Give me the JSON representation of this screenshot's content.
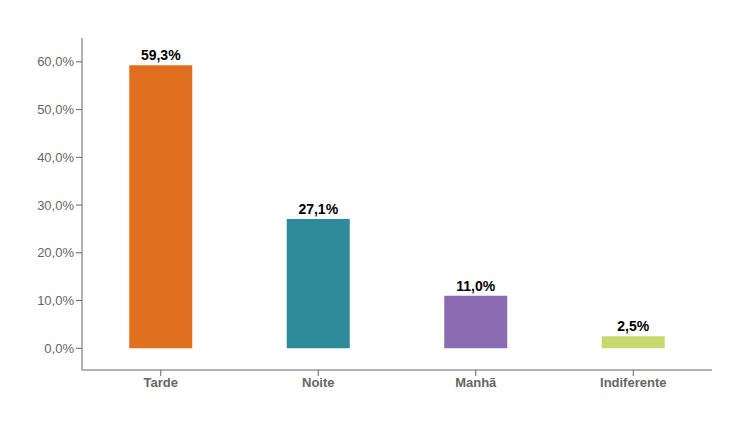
{
  "chart_data": {
    "type": "bar",
    "categories": [
      "Tarde",
      "Noite",
      "Manhã",
      "Indiferente"
    ],
    "values": [
      59.3,
      27.1,
      11.0,
      2.5
    ],
    "value_labels": [
      "59,3%",
      "27,1%",
      "11,0%",
      "2,5%"
    ],
    "data_labels": true,
    "colors": [
      "#E07020",
      "#2E8B9A",
      "#8B6BB1",
      "#C8D96F"
    ],
    "ylim": [
      -4.55,
      65
    ],
    "yticks": [
      {
        "value": 0,
        "label": "0,0%"
      },
      {
        "value": 10,
        "label": "10,0%"
      },
      {
        "value": 20,
        "label": "20,0%"
      },
      {
        "value": 30,
        "label": "30,0%"
      },
      {
        "value": 40,
        "label": "40,0%"
      },
      {
        "value": 50,
        "label": "50,0%"
      },
      {
        "value": 60,
        "label": "60,0%"
      }
    ],
    "grid": false
  }
}
